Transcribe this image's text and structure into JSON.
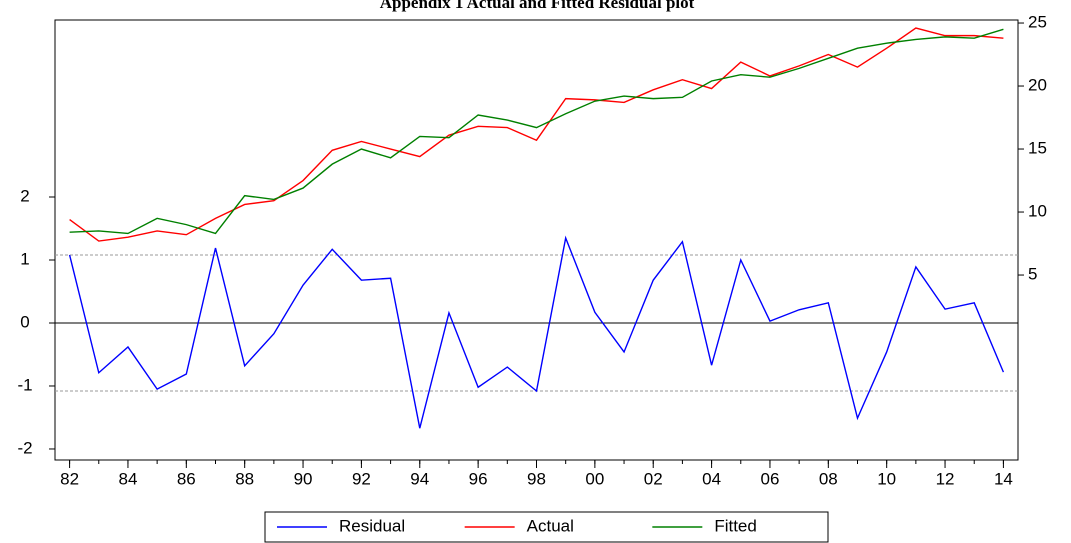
{
  "chart_data": {
    "type": "line",
    "title": "Appendix 1 Actual and Fitted Residual plot",
    "x": [
      1982,
      1983,
      1984,
      1985,
      1986,
      1987,
      1988,
      1989,
      1990,
      1991,
      1992,
      1993,
      1994,
      1995,
      1996,
      1997,
      1998,
      1999,
      2000,
      2001,
      2002,
      2003,
      2004,
      2005,
      2006,
      2007,
      2008,
      2009,
      2010,
      2011,
      2012,
      2013,
      2014
    ],
    "xlim": [
      1981.5,
      2014.5
    ],
    "xticks": [
      {
        "value": 1982,
        "label": "82"
      },
      {
        "value": 1984,
        "label": "84"
      },
      {
        "value": 1986,
        "label": "86"
      },
      {
        "value": 1988,
        "label": "88"
      },
      {
        "value": 1990,
        "label": "90"
      },
      {
        "value": 1992,
        "label": "92"
      },
      {
        "value": 1994,
        "label": "94"
      },
      {
        "value": 1996,
        "label": "96"
      },
      {
        "value": 1998,
        "label": "98"
      },
      {
        "value": 2000,
        "label": "00"
      },
      {
        "value": 2002,
        "label": "02"
      },
      {
        "value": 2004,
        "label": "04"
      },
      {
        "value": 2006,
        "label": "06"
      },
      {
        "value": 2008,
        "label": "08"
      },
      {
        "value": 2010,
        "label": "10"
      },
      {
        "value": 2012,
        "label": "12"
      },
      {
        "value": 2014,
        "label": "14"
      }
    ],
    "ylim": [
      -2.175,
      4.81
    ],
    "yticks": [
      -2,
      -1,
      0,
      1,
      2
    ],
    "y2lim": [
      -9.68,
      25.24
    ],
    "y2ticks": [
      5,
      10,
      15,
      20,
      25
    ],
    "zero_line": 0,
    "reference_lines": [
      -1.08,
      1.08
    ],
    "legend": "bottom",
    "series": [
      {
        "name": "Residual",
        "color": "#0000ff",
        "axis": "y",
        "values": [
          1.08,
          -0.79,
          -0.38,
          -1.05,
          -0.81,
          1.19,
          -0.68,
          -0.17,
          0.6,
          1.17,
          0.68,
          0.71,
          -1.67,
          0.16,
          -1.02,
          -0.7,
          -1.08,
          1.35,
          0.17,
          -0.46,
          0.68,
          1.29,
          -0.67,
          1.0,
          0.03,
          0.21,
          0.32,
          -1.51,
          -0.46,
          0.89,
          0.22,
          0.32,
          -0.78
        ]
      },
      {
        "name": "Actual",
        "color": "#ff0000",
        "axis": "y2",
        "values": [
          9.4,
          7.7,
          8.0,
          8.5,
          8.2,
          9.5,
          10.6,
          10.9,
          12.5,
          14.9,
          15.6,
          15.0,
          14.4,
          16.1,
          16.8,
          16.7,
          15.7,
          19.0,
          18.9,
          18.7,
          19.7,
          20.5,
          19.8,
          21.9,
          20.8,
          21.6,
          22.5,
          21.5,
          23.0,
          24.6,
          24.0,
          24.0,
          23.8
        ]
      },
      {
        "name": "Fitted",
        "color": "#008000",
        "axis": "y2",
        "values": [
          8.4,
          8.5,
          8.3,
          9.5,
          9.0,
          8.3,
          11.3,
          11.0,
          11.9,
          13.8,
          15.0,
          14.3,
          16.0,
          15.9,
          17.7,
          17.3,
          16.7,
          17.8,
          18.8,
          19.2,
          19.0,
          19.1,
          20.4,
          20.9,
          20.7,
          21.4,
          22.2,
          23.0,
          23.4,
          23.7,
          23.9,
          23.8,
          24.5
        ]
      }
    ]
  }
}
